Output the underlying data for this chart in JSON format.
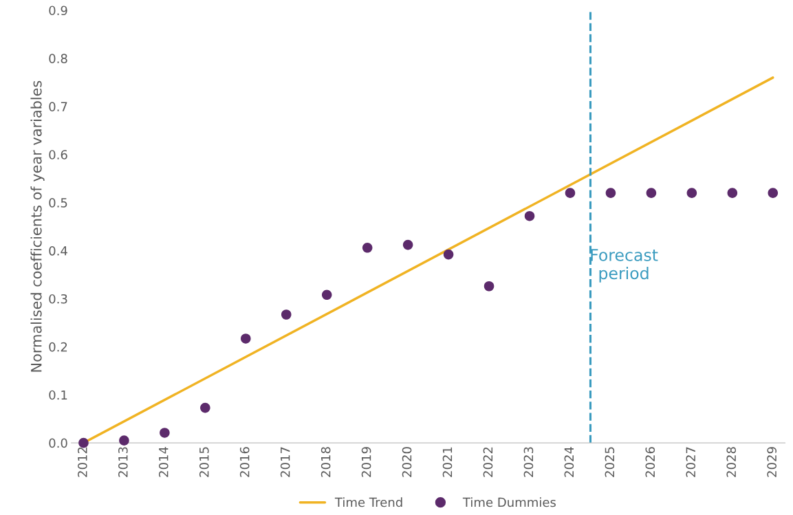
{
  "chart_data": {
    "type": "scatter",
    "ylabel": "Normalised coefficients of year variables",
    "x": [
      2012,
      2013,
      2014,
      2015,
      2016,
      2017,
      2018,
      2019,
      2020,
      2021,
      2022,
      2023,
      2024,
      2025,
      2026,
      2027,
      2028,
      2029
    ],
    "series": [
      {
        "name": "Time Trend",
        "type": "line",
        "color": "#f0b323",
        "x": [
          2012,
          2029
        ],
        "values": [
          0.0,
          0.76
        ],
        "marker": "none",
        "line_style": "solid"
      },
      {
        "name": "Time Dummies",
        "color": "#5c2a6b",
        "marker": "circle",
        "values": [
          0.0,
          0.005,
          0.021,
          0.073,
          0.217,
          0.267,
          0.308,
          0.406,
          0.412,
          0.392,
          0.326,
          0.472,
          0.52,
          0.52,
          0.52,
          0.52,
          0.52,
          0.52
        ]
      }
    ],
    "xlim": [
      2011.7,
      2029.3
    ],
    "xticks": [
      2012,
      2013,
      2014,
      2015,
      2016,
      2017,
      2018,
      2019,
      2020,
      2021,
      2022,
      2023,
      2024,
      2025,
      2026,
      2027,
      2028,
      2029
    ],
    "ylim": [
      0,
      0.9
    ],
    "yticks": [
      {
        "value": 0,
        "label": "0.0"
      },
      0.1,
      0.2,
      0.3,
      0.4,
      0.5,
      0.6,
      0.7,
      0.8,
      0.9
    ],
    "ref_lines": [
      {
        "axis": "x",
        "value": 2024.5,
        "color": "#3a9bbf",
        "line_style": "dashed"
      }
    ],
    "annotations": [
      "Forecast\nperiod"
    ],
    "grid": false,
    "legend": "bottom"
  }
}
